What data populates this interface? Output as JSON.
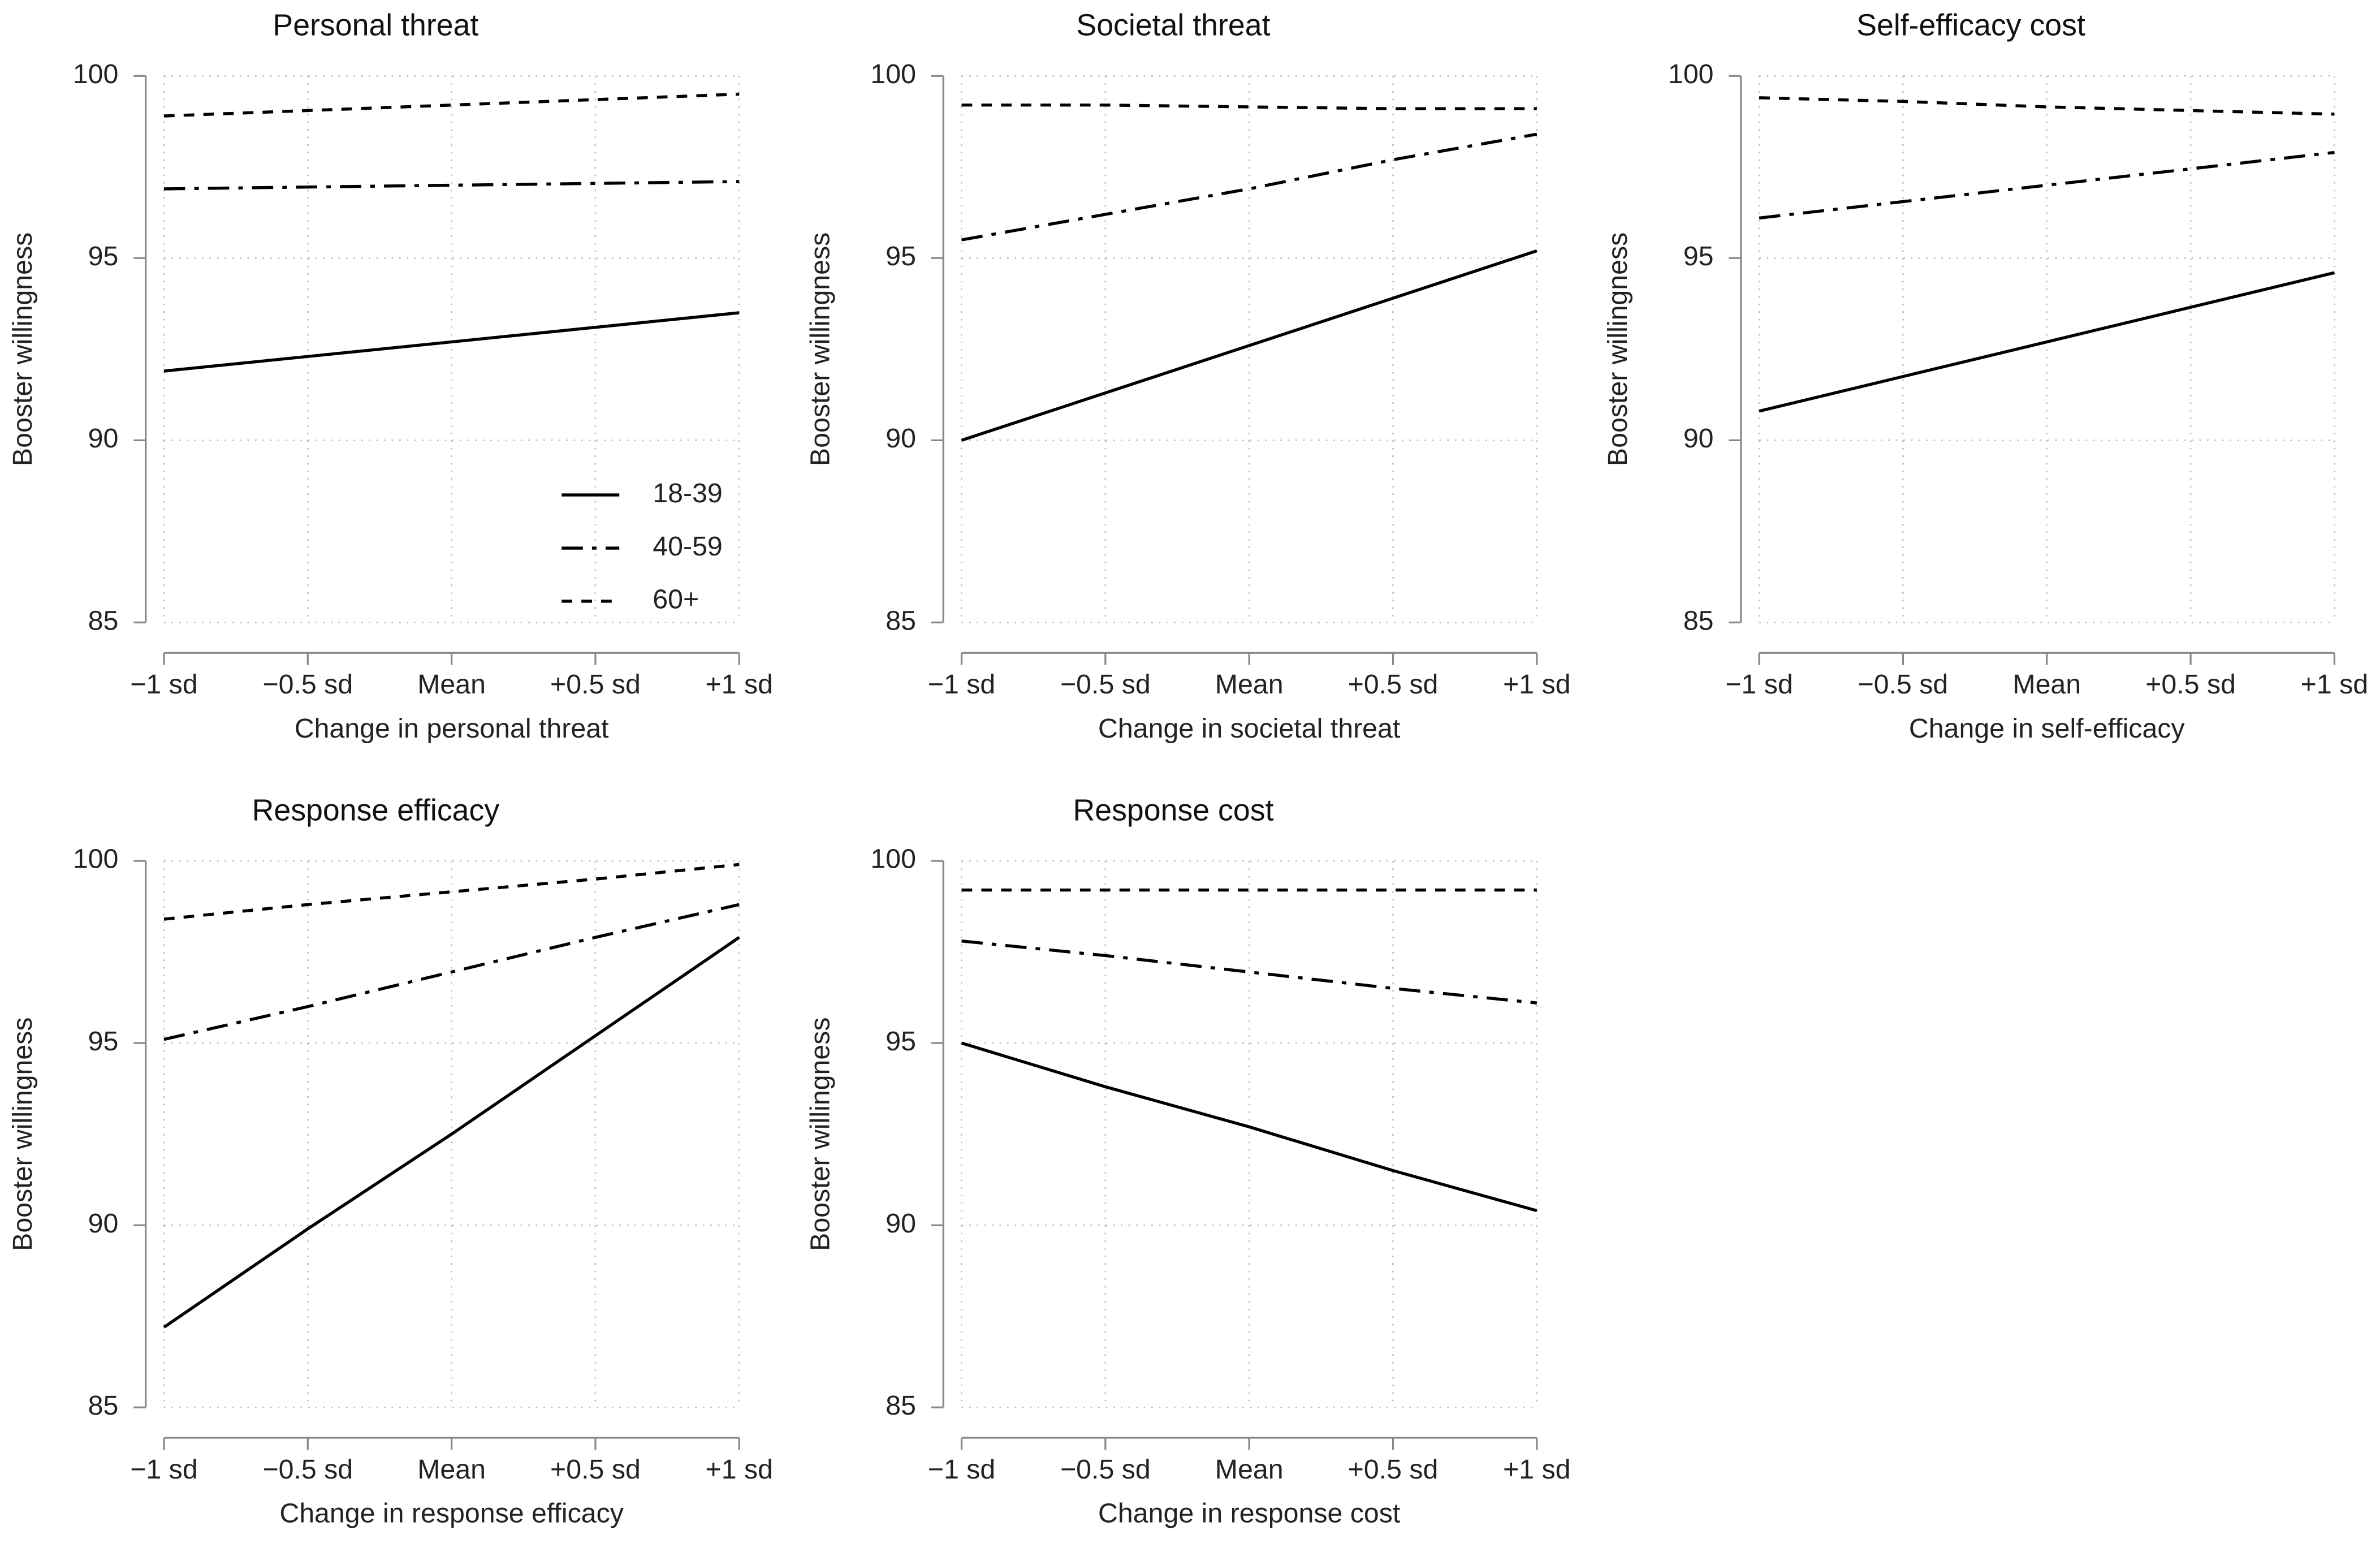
{
  "chart_data": [
    {
      "type": "line",
      "title": "Personal threat",
      "xlabel": "Change in personal threat",
      "ylabel": "Booster willingness",
      "categories": [
        "−1 sd",
        "−0.5 sd",
        "Mean",
        "+0.5 sd",
        "+1 sd"
      ],
      "series": [
        {
          "name": "18-39",
          "color": "#000000",
          "dash": "solid",
          "values": [
            91.9,
            92.3,
            92.7,
            93.1,
            93.5
          ]
        },
        {
          "name": "40-59",
          "color": "#000000",
          "dash": "dashdot",
          "values": [
            96.9,
            96.95,
            97.0,
            97.05,
            97.1
          ]
        },
        {
          "name": "60+",
          "color": "#000000",
          "dash": "dash",
          "values": [
            98.9,
            99.05,
            99.2,
            99.35,
            99.5
          ]
        }
      ],
      "ylim": [
        85,
        100
      ],
      "yticks": [
        85,
        90,
        95,
        100
      ],
      "grid": true,
      "legend": "lower right"
    },
    {
      "type": "line",
      "title": "Societal threat",
      "xlabel": "Change in societal threat",
      "ylabel": "Booster willingness",
      "categories": [
        "−1 sd",
        "−0.5 sd",
        "Mean",
        "+0.5 sd",
        "+1 sd"
      ],
      "series": [
        {
          "color": "#000000",
          "dash": "solid",
          "values": [
            90.0,
            91.3,
            92.6,
            93.9,
            95.2
          ]
        },
        {
          "color": "#000000",
          "dash": "dashdot",
          "values": [
            95.5,
            96.2,
            96.9,
            97.7,
            98.4
          ]
        },
        {
          "color": "#000000",
          "dash": "dash",
          "values": [
            99.2,
            99.2,
            99.15,
            99.1,
            99.1
          ]
        }
      ],
      "ylim": [
        85,
        100
      ],
      "yticks": [
        85,
        90,
        95,
        100
      ],
      "grid": true
    },
    {
      "type": "line",
      "title": "Self-efficacy cost",
      "xlabel": "Change in self-efficacy",
      "ylabel": "Booster willingness",
      "categories": [
        "−1 sd",
        "−0.5 sd",
        "Mean",
        "+0.5 sd",
        "+1 sd"
      ],
      "series": [
        {
          "color": "#000000",
          "dash": "solid",
          "values": [
            90.8,
            91.75,
            92.7,
            93.65,
            94.6
          ]
        },
        {
          "color": "#000000",
          "dash": "dashdot",
          "values": [
            96.1,
            96.55,
            97.0,
            97.45,
            97.9
          ]
        },
        {
          "color": "#000000",
          "dash": "dash",
          "values": [
            99.4,
            99.3,
            99.15,
            99.05,
            98.95
          ]
        }
      ],
      "ylim": [
        85,
        100
      ],
      "yticks": [
        85,
        90,
        95,
        100
      ],
      "grid": true
    },
    {
      "type": "line",
      "title": "Response efficacy",
      "xlabel": "Change in response efficacy",
      "ylabel": "Booster willingness",
      "categories": [
        "−1 sd",
        "−0.5 sd",
        "Mean",
        "+0.5 sd",
        "+1 sd"
      ],
      "series": [
        {
          "color": "#000000",
          "dash": "solid",
          "values": [
            87.2,
            89.9,
            92.5,
            95.2,
            97.9
          ]
        },
        {
          "color": "#000000",
          "dash": "dashdot",
          "values": [
            95.1,
            96.0,
            96.95,
            97.9,
            98.8
          ]
        },
        {
          "color": "#000000",
          "dash": "dash",
          "values": [
            98.4,
            98.8,
            99.15,
            99.5,
            99.9
          ]
        }
      ],
      "ylim": [
        85,
        100
      ],
      "yticks": [
        85,
        90,
        95,
        100
      ],
      "grid": true
    },
    {
      "type": "line",
      "title": "Response cost",
      "xlabel": "Change in response cost",
      "ylabel": "Booster willingness",
      "categories": [
        "−1 sd",
        "−0.5 sd",
        "Mean",
        "+0.5 sd",
        "+1 sd"
      ],
      "series": [
        {
          "color": "#000000",
          "dash": "solid",
          "values": [
            95.0,
            93.8,
            92.7,
            91.5,
            90.4
          ]
        },
        {
          "color": "#000000",
          "dash": "dashdot",
          "values": [
            97.8,
            97.4,
            96.95,
            96.5,
            96.1
          ]
        },
        {
          "color": "#000000",
          "dash": "dash",
          "values": [
            99.2,
            99.2,
            99.2,
            99.2,
            99.2
          ]
        }
      ],
      "ylim": [
        85,
        100
      ],
      "yticks": [
        85,
        90,
        95,
        100
      ],
      "grid": true
    }
  ]
}
